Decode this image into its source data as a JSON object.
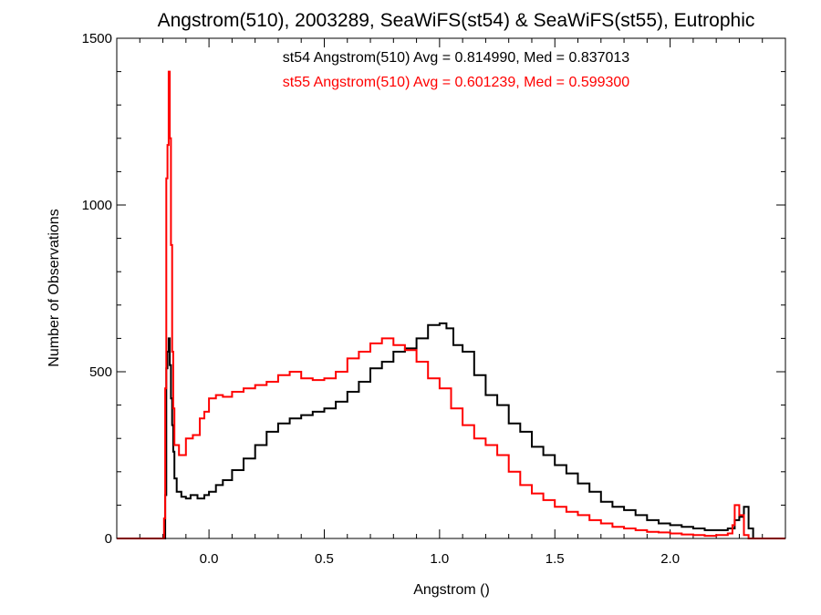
{
  "chart_data": {
    "type": "histogram-step",
    "title": "Angstrom(510), 2003289, SeaWiFS(st54) & SeaWiFS(st55), Eutrophic",
    "xlabel": "Angstrom ()",
    "ylabel": "Number of Observations",
    "xlim": [
      -0.4,
      2.5
    ],
    "ylim": [
      0,
      1500
    ],
    "xticks": [
      0.0,
      0.5,
      1.0,
      1.5,
      2.0
    ],
    "xtick_labels": [
      "0.0",
      "0.5",
      "1.0",
      "1.5",
      "2.0"
    ],
    "yticks": [
      0,
      500,
      1000,
      1500
    ],
    "ytick_labels": [
      "0",
      "500",
      "1000",
      "1500"
    ],
    "grid": false,
    "legend_position": "top-center",
    "series": [
      {
        "name": "st54",
        "color": "#000000",
        "legend_text": "st54 Angstrom(510) Avg = 0.814990, Med = 0.837013",
        "points": [
          [
            -0.4,
            0
          ],
          [
            -0.2,
            0
          ],
          [
            -0.19,
            130
          ],
          [
            -0.185,
            510
          ],
          [
            -0.18,
            560
          ],
          [
            -0.175,
            600
          ],
          [
            -0.17,
            520
          ],
          [
            -0.165,
            420
          ],
          [
            -0.16,
            340
          ],
          [
            -0.155,
            260
          ],
          [
            -0.15,
            180
          ],
          [
            -0.14,
            140
          ],
          [
            -0.12,
            125
          ],
          [
            -0.1,
            120
          ],
          [
            -0.08,
            130
          ],
          [
            -0.05,
            120
          ],
          [
            -0.02,
            130
          ],
          [
            0.0,
            140
          ],
          [
            0.03,
            160
          ],
          [
            0.06,
            175
          ],
          [
            0.1,
            205
          ],
          [
            0.15,
            240
          ],
          [
            0.2,
            280
          ],
          [
            0.25,
            320
          ],
          [
            0.3,
            345
          ],
          [
            0.35,
            360
          ],
          [
            0.4,
            370
          ],
          [
            0.45,
            380
          ],
          [
            0.5,
            390
          ],
          [
            0.55,
            410
          ],
          [
            0.6,
            440
          ],
          [
            0.65,
            470
          ],
          [
            0.7,
            510
          ],
          [
            0.75,
            530
          ],
          [
            0.8,
            560
          ],
          [
            0.85,
            570
          ],
          [
            0.9,
            600
          ],
          [
            0.95,
            640
          ],
          [
            1.0,
            645
          ],
          [
            1.03,
            630
          ],
          [
            1.06,
            580
          ],
          [
            1.1,
            560
          ],
          [
            1.15,
            490
          ],
          [
            1.2,
            430
          ],
          [
            1.25,
            400
          ],
          [
            1.3,
            345
          ],
          [
            1.35,
            320
          ],
          [
            1.4,
            275
          ],
          [
            1.45,
            250
          ],
          [
            1.5,
            220
          ],
          [
            1.55,
            195
          ],
          [
            1.6,
            165
          ],
          [
            1.65,
            140
          ],
          [
            1.7,
            110
          ],
          [
            1.75,
            95
          ],
          [
            1.8,
            85
          ],
          [
            1.85,
            70
          ],
          [
            1.9,
            55
          ],
          [
            1.95,
            45
          ],
          [
            2.0,
            40
          ],
          [
            2.05,
            35
          ],
          [
            2.1,
            30
          ],
          [
            2.15,
            25
          ],
          [
            2.2,
            25
          ],
          [
            2.25,
            30
          ],
          [
            2.28,
            55
          ],
          [
            2.3,
            65
          ],
          [
            2.32,
            95
          ],
          [
            2.34,
            30
          ],
          [
            2.36,
            0
          ],
          [
            2.5,
            0
          ]
        ]
      },
      {
        "name": "st55",
        "color": "#ff0000",
        "legend_text": "st55 Angstrom(510) Avg = 0.601239, Med = 0.599300",
        "points": [
          [
            -0.4,
            0
          ],
          [
            -0.2,
            0
          ],
          [
            -0.195,
            60
          ],
          [
            -0.19,
            450
          ],
          [
            -0.185,
            1080
          ],
          [
            -0.18,
            1180
          ],
          [
            -0.175,
            1400
          ],
          [
            -0.17,
            1200
          ],
          [
            -0.165,
            880
          ],
          [
            -0.16,
            560
          ],
          [
            -0.155,
            390
          ],
          [
            -0.15,
            280
          ],
          [
            -0.13,
            250
          ],
          [
            -0.1,
            300
          ],
          [
            -0.07,
            310
          ],
          [
            -0.04,
            360
          ],
          [
            -0.02,
            380
          ],
          [
            0.0,
            420
          ],
          [
            0.03,
            430
          ],
          [
            0.06,
            425
          ],
          [
            0.1,
            440
          ],
          [
            0.15,
            450
          ],
          [
            0.2,
            460
          ],
          [
            0.25,
            470
          ],
          [
            0.3,
            490
          ],
          [
            0.35,
            500
          ],
          [
            0.4,
            480
          ],
          [
            0.45,
            475
          ],
          [
            0.5,
            480
          ],
          [
            0.55,
            500
          ],
          [
            0.6,
            540
          ],
          [
            0.65,
            560
          ],
          [
            0.7,
            585
          ],
          [
            0.75,
            600
          ],
          [
            0.8,
            580
          ],
          [
            0.85,
            565
          ],
          [
            0.9,
            530
          ],
          [
            0.95,
            480
          ],
          [
            1.0,
            450
          ],
          [
            1.05,
            390
          ],
          [
            1.1,
            340
          ],
          [
            1.15,
            300
          ],
          [
            1.2,
            280
          ],
          [
            1.25,
            250
          ],
          [
            1.3,
            200
          ],
          [
            1.35,
            160
          ],
          [
            1.4,
            135
          ],
          [
            1.45,
            115
          ],
          [
            1.5,
            95
          ],
          [
            1.55,
            80
          ],
          [
            1.6,
            70
          ],
          [
            1.65,
            55
          ],
          [
            1.7,
            45
          ],
          [
            1.75,
            35
          ],
          [
            1.8,
            30
          ],
          [
            1.85,
            25
          ],
          [
            1.9,
            20
          ],
          [
            1.95,
            18
          ],
          [
            2.0,
            15
          ],
          [
            2.05,
            12
          ],
          [
            2.1,
            10
          ],
          [
            2.15,
            8
          ],
          [
            2.2,
            10
          ],
          [
            2.25,
            15
          ],
          [
            2.27,
            40
          ],
          [
            2.28,
            100
          ],
          [
            2.3,
            70
          ],
          [
            2.32,
            10
          ],
          [
            2.34,
            0
          ],
          [
            2.5,
            0
          ]
        ]
      }
    ]
  }
}
